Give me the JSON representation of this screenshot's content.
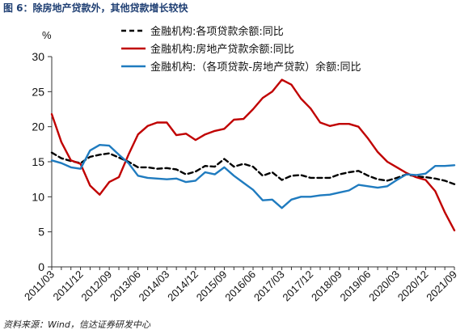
{
  "figure": {
    "title": "图 6：除房地产贷款外，其他贷款增长较快",
    "source": "资料来源：Wind，信达证券研发中心"
  },
  "colors": {
    "series1": "#000000",
    "series2": "#c00000",
    "series3": "#1f7bbf",
    "axis": "#333333"
  },
  "chart_data": {
    "type": "line",
    "title": "",
    "unit_label": "%",
    "xlabel": "",
    "ylabel": "",
    "ylim": [
      0,
      30
    ],
    "yticks": [
      0,
      5,
      10,
      15,
      20,
      25,
      30
    ],
    "xlim": [
      "2011-03",
      "2021-09"
    ],
    "xticks": [
      "2011/03",
      "2011/12",
      "2012/09",
      "2013/06",
      "2014/03",
      "2014/12",
      "2015/09",
      "2016/06",
      "2017/03",
      "2017/12",
      "2018/09",
      "2019/06",
      "2020/03",
      "2020/12",
      "2021/09"
    ],
    "legend_position": "top-right",
    "grid": false,
    "series": [
      {
        "name": "金融机构:各项贷款余额:同比",
        "style": "dashed",
        "points": [
          [
            "2011-03",
            16.3
          ],
          [
            "2011-06",
            15.5
          ],
          [
            "2011-09",
            15.1
          ],
          [
            "2011-12",
            14.8
          ],
          [
            "2012-03",
            15.7
          ],
          [
            "2012-06",
            16.0
          ],
          [
            "2012-09",
            16.2
          ],
          [
            "2012-12",
            15.6
          ],
          [
            "2013-03",
            15.0
          ],
          [
            "2013-06",
            14.2
          ],
          [
            "2013-09",
            14.2
          ],
          [
            "2013-12",
            14.0
          ],
          [
            "2014-03",
            14.1
          ],
          [
            "2014-06",
            13.9
          ],
          [
            "2014-09",
            13.2
          ],
          [
            "2014-12",
            13.6
          ],
          [
            "2015-03",
            14.4
          ],
          [
            "2015-06",
            14.3
          ],
          [
            "2015-09",
            15.4
          ],
          [
            "2015-12",
            14.3
          ],
          [
            "2016-03",
            14.7
          ],
          [
            "2016-06",
            14.3
          ],
          [
            "2016-09",
            13.0
          ],
          [
            "2016-12",
            13.5
          ],
          [
            "2017-03",
            12.4
          ],
          [
            "2017-06",
            13.0
          ],
          [
            "2017-09",
            13.1
          ],
          [
            "2017-12",
            12.7
          ],
          [
            "2018-03",
            12.7
          ],
          [
            "2018-06",
            12.7
          ],
          [
            "2018-09",
            13.2
          ],
          [
            "2018-12",
            13.5
          ],
          [
            "2019-03",
            13.7
          ],
          [
            "2019-06",
            13.0
          ],
          [
            "2019-09",
            12.5
          ],
          [
            "2019-12",
            12.3
          ],
          [
            "2020-03",
            12.7
          ],
          [
            "2020-06",
            13.2
          ],
          [
            "2020-09",
            12.9
          ],
          [
            "2020-12",
            12.8
          ],
          [
            "2021-03",
            12.6
          ],
          [
            "2021-06",
            12.3
          ],
          [
            "2021-09",
            11.8
          ]
        ]
      },
      {
        "name": "金融机构:房地产贷款余额:同比",
        "style": "solid",
        "points": [
          [
            "2011-03",
            21.8
          ],
          [
            "2011-06",
            17.8
          ],
          [
            "2011-09",
            15.2
          ],
          [
            "2011-12",
            14.7
          ],
          [
            "2012-03",
            11.6
          ],
          [
            "2012-06",
            10.3
          ],
          [
            "2012-09",
            12.1
          ],
          [
            "2012-12",
            12.8
          ],
          [
            "2013-03",
            16.0
          ],
          [
            "2013-06",
            18.9
          ],
          [
            "2013-09",
            20.1
          ],
          [
            "2013-12",
            20.6
          ],
          [
            "2014-03",
            20.6
          ],
          [
            "2014-06",
            18.8
          ],
          [
            "2014-09",
            19.0
          ],
          [
            "2014-12",
            18.1
          ],
          [
            "2015-03",
            18.9
          ],
          [
            "2015-06",
            19.4
          ],
          [
            "2015-09",
            19.7
          ],
          [
            "2015-12",
            21.0
          ],
          [
            "2016-03",
            21.1
          ],
          [
            "2016-06",
            22.5
          ],
          [
            "2016-09",
            24.1
          ],
          [
            "2016-12",
            25.0
          ],
          [
            "2017-03",
            26.7
          ],
          [
            "2017-06",
            26.0
          ],
          [
            "2017-09",
            24.0
          ],
          [
            "2017-12",
            22.6
          ],
          [
            "2018-03",
            20.6
          ],
          [
            "2018-06",
            20.1
          ],
          [
            "2018-09",
            20.4
          ],
          [
            "2018-12",
            20.4
          ],
          [
            "2019-03",
            20.0
          ],
          [
            "2019-06",
            18.3
          ],
          [
            "2019-09",
            16.4
          ],
          [
            "2019-12",
            15.0
          ],
          [
            "2020-03",
            14.2
          ],
          [
            "2020-06",
            13.4
          ],
          [
            "2020-09",
            12.8
          ],
          [
            "2020-12",
            12.4
          ],
          [
            "2021-03",
            10.8
          ],
          [
            "2021-06",
            7.8
          ],
          [
            "2021-09",
            5.2
          ]
        ]
      },
      {
        "name": "金融机构:（各项贷款-房地产贷款）余额:同比",
        "style": "solid",
        "points": [
          [
            "2011-03",
            15.2
          ],
          [
            "2011-06",
            14.8
          ],
          [
            "2011-09",
            14.2
          ],
          [
            "2011-12",
            14.0
          ],
          [
            "2012-03",
            16.6
          ],
          [
            "2012-06",
            17.4
          ],
          [
            "2012-09",
            17.3
          ],
          [
            "2012-12",
            16.0
          ],
          [
            "2013-03",
            14.8
          ],
          [
            "2013-06",
            13.0
          ],
          [
            "2013-09",
            12.7
          ],
          [
            "2013-12",
            12.6
          ],
          [
            "2014-03",
            12.5
          ],
          [
            "2014-06",
            12.6
          ],
          [
            "2014-09",
            12.1
          ],
          [
            "2014-12",
            12.3
          ],
          [
            "2015-03",
            13.5
          ],
          [
            "2015-06",
            13.2
          ],
          [
            "2015-09",
            14.2
          ],
          [
            "2015-12",
            13.0
          ],
          [
            "2016-03",
            12.0
          ],
          [
            "2016-06",
            11.0
          ],
          [
            "2016-09",
            9.5
          ],
          [
            "2016-12",
            9.6
          ],
          [
            "2017-03",
            8.4
          ],
          [
            "2017-06",
            9.6
          ],
          [
            "2017-09",
            10.0
          ],
          [
            "2017-12",
            10.0
          ],
          [
            "2018-03",
            10.2
          ],
          [
            "2018-06",
            10.3
          ],
          [
            "2018-09",
            10.6
          ],
          [
            "2018-12",
            10.9
          ],
          [
            "2019-03",
            11.7
          ],
          [
            "2019-06",
            11.5
          ],
          [
            "2019-09",
            11.3
          ],
          [
            "2019-12",
            11.5
          ],
          [
            "2020-03",
            12.4
          ],
          [
            "2020-06",
            13.2
          ],
          [
            "2020-09",
            13.1
          ],
          [
            "2020-12",
            13.3
          ],
          [
            "2021-03",
            14.4
          ],
          [
            "2021-06",
            14.4
          ],
          [
            "2021-09",
            14.5
          ]
        ]
      }
    ]
  }
}
